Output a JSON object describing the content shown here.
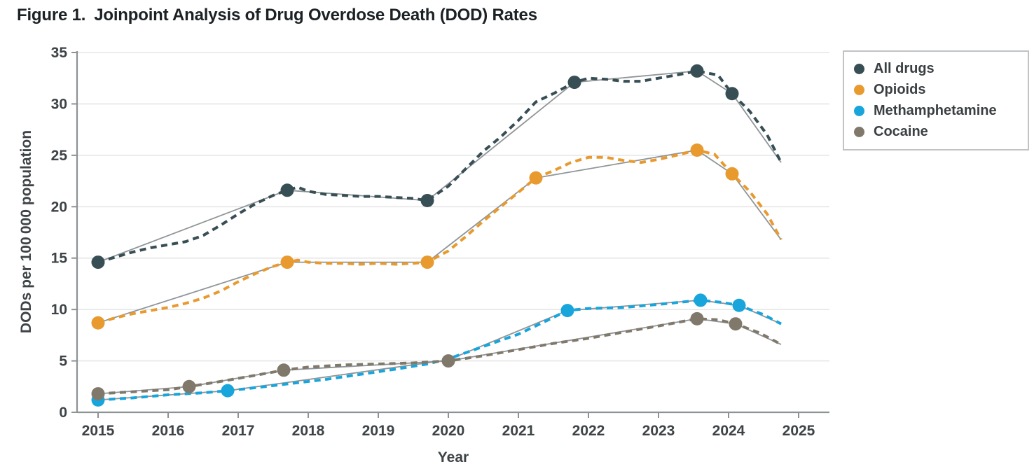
{
  "figure": {
    "label": "Figure 1.",
    "title": "Joinpoint Analysis of Drug Overdose Death (DOD) Rates"
  },
  "legend": {
    "items": [
      "All drugs",
      "Opioids",
      "Methamphetamine",
      "Cocaine"
    ]
  },
  "colors": {
    "all_drugs": "#374e55",
    "opioids": "#e89a2e",
    "methamphetamine": "#18a5dc",
    "cocaine": "#80796b",
    "fit_line": "#8f9598",
    "axis": "#8d9295",
    "gridline": "#e5e6e6",
    "tick_label": "#3d4346",
    "title_text": "#1b2124"
  },
  "chart_data": {
    "type": "line",
    "title": "Figure 1. Joinpoint Analysis of Drug Overdose Death (DOD) Rates",
    "xlabel": "Year",
    "ylabel": "DODs per 100 000 population",
    "xlim": [
      2014.7,
      2025.45
    ],
    "ylim": [
      0,
      35
    ],
    "x_ticks": [
      2015,
      2016,
      2017,
      2018,
      2019,
      2020,
      2021,
      2022,
      2023,
      2024,
      2025
    ],
    "y_ticks": [
      0,
      5,
      10,
      15,
      20,
      25,
      30,
      35
    ],
    "grid": "horizontal",
    "legend_position": "outside-top-right",
    "style_note": "dashed colored lines = observed rates; thin solid gray lines = joinpoint model fit; filled circles = joinpoints",
    "series": [
      {
        "name": "All drugs",
        "color": "#374e55",
        "joinpoints": [
          [
            2015.0,
            14.6
          ],
          [
            2017.7,
            21.6
          ],
          [
            2019.7,
            20.6
          ],
          [
            2021.8,
            32.1
          ],
          [
            2023.55,
            33.2
          ],
          [
            2024.05,
            31.0
          ]
        ],
        "fit_line": [
          [
            2015.0,
            14.6
          ],
          [
            2017.7,
            21.6
          ],
          [
            2019.7,
            20.6
          ],
          [
            2021.8,
            32.1
          ],
          [
            2023.55,
            33.2
          ],
          [
            2024.05,
            31.0
          ],
          [
            2024.75,
            24.3
          ]
        ],
        "observed": [
          [
            2015.0,
            14.6
          ],
          [
            2015.25,
            15.1
          ],
          [
            2015.5,
            15.6
          ],
          [
            2015.75,
            16.0
          ],
          [
            2016.0,
            16.3
          ],
          [
            2016.25,
            16.6
          ],
          [
            2016.5,
            17.2
          ],
          [
            2016.75,
            18.2
          ],
          [
            2017.0,
            19.3
          ],
          [
            2017.25,
            20.3
          ],
          [
            2017.5,
            21.1
          ],
          [
            2017.7,
            21.6
          ],
          [
            2017.85,
            21.9
          ],
          [
            2018.0,
            21.5
          ],
          [
            2018.25,
            21.2
          ],
          [
            2018.5,
            21.1
          ],
          [
            2018.75,
            21.0
          ],
          [
            2019.0,
            21.0
          ],
          [
            2019.25,
            20.9
          ],
          [
            2019.5,
            20.8
          ],
          [
            2019.7,
            20.6
          ],
          [
            2020.0,
            22.0
          ],
          [
            2020.25,
            23.7
          ],
          [
            2020.5,
            25.4
          ],
          [
            2020.75,
            26.8
          ],
          [
            2021.0,
            28.4
          ],
          [
            2021.25,
            30.2
          ],
          [
            2021.5,
            31.0
          ],
          [
            2021.8,
            32.1
          ],
          [
            2022.0,
            32.5
          ],
          [
            2022.25,
            32.4
          ],
          [
            2022.5,
            32.2
          ],
          [
            2022.75,
            32.2
          ],
          [
            2023.0,
            32.5
          ],
          [
            2023.25,
            32.8
          ],
          [
            2023.55,
            33.2
          ],
          [
            2023.85,
            32.8
          ],
          [
            2024.05,
            31.0
          ],
          [
            2024.3,
            29.3
          ],
          [
            2024.55,
            27.0
          ],
          [
            2024.75,
            24.3
          ]
        ]
      },
      {
        "name": "Opioids",
        "color": "#e89a2e",
        "joinpoints": [
          [
            2015.0,
            8.7
          ],
          [
            2017.7,
            14.6
          ],
          [
            2019.7,
            14.6
          ],
          [
            2021.25,
            22.8
          ],
          [
            2023.55,
            25.5
          ],
          [
            2024.05,
            23.2
          ]
        ],
        "fit_line": [
          [
            2015.0,
            8.7
          ],
          [
            2017.7,
            14.6
          ],
          [
            2019.7,
            14.6
          ],
          [
            2021.25,
            22.8
          ],
          [
            2023.55,
            25.5
          ],
          [
            2024.05,
            23.2
          ],
          [
            2024.75,
            16.8
          ]
        ],
        "observed": [
          [
            2015.0,
            8.7
          ],
          [
            2015.25,
            9.2
          ],
          [
            2015.5,
            9.6
          ],
          [
            2015.75,
            9.9
          ],
          [
            2016.0,
            10.2
          ],
          [
            2016.25,
            10.6
          ],
          [
            2016.5,
            11.1
          ],
          [
            2016.75,
            11.8
          ],
          [
            2017.0,
            12.7
          ],
          [
            2017.25,
            13.5
          ],
          [
            2017.5,
            14.2
          ],
          [
            2017.7,
            14.6
          ],
          [
            2017.85,
            14.8
          ],
          [
            2018.0,
            14.6
          ],
          [
            2018.25,
            14.5
          ],
          [
            2018.5,
            14.5
          ],
          [
            2018.75,
            14.4
          ],
          [
            2019.0,
            14.5
          ],
          [
            2019.25,
            14.4
          ],
          [
            2019.5,
            14.5
          ],
          [
            2019.7,
            14.6
          ],
          [
            2020.0,
            15.7
          ],
          [
            2020.25,
            17.1
          ],
          [
            2020.5,
            18.6
          ],
          [
            2020.75,
            20.0
          ],
          [
            2021.0,
            21.4
          ],
          [
            2021.25,
            22.8
          ],
          [
            2021.5,
            23.5
          ],
          [
            2021.75,
            24.3
          ],
          [
            2022.0,
            24.8
          ],
          [
            2022.25,
            24.8
          ],
          [
            2022.5,
            24.5
          ],
          [
            2022.75,
            24.3
          ],
          [
            2023.0,
            24.6
          ],
          [
            2023.25,
            25.0
          ],
          [
            2023.55,
            25.5
          ],
          [
            2023.8,
            25.1
          ],
          [
            2024.05,
            23.2
          ],
          [
            2024.3,
            21.5
          ],
          [
            2024.55,
            19.3
          ],
          [
            2024.75,
            16.8
          ]
        ]
      },
      {
        "name": "Methamphetamine",
        "color": "#18a5dc",
        "joinpoints": [
          [
            2015.0,
            1.2
          ],
          [
            2016.85,
            2.1
          ],
          [
            2021.7,
            9.9
          ],
          [
            2023.6,
            10.9
          ],
          [
            2024.15,
            10.4
          ]
        ],
        "fit_line": [
          [
            2015.0,
            1.2
          ],
          [
            2016.85,
            2.1
          ],
          [
            2020.0,
            5.1
          ],
          [
            2021.7,
            9.9
          ],
          [
            2023.6,
            10.9
          ],
          [
            2024.15,
            10.4
          ],
          [
            2024.75,
            8.6
          ]
        ],
        "observed": [
          [
            2015.0,
            1.2
          ],
          [
            2015.5,
            1.4
          ],
          [
            2016.0,
            1.7
          ],
          [
            2016.5,
            1.9
          ],
          [
            2016.85,
            2.1
          ],
          [
            2017.25,
            2.4
          ],
          [
            2017.75,
            2.8
          ],
          [
            2018.25,
            3.2
          ],
          [
            2018.75,
            3.7
          ],
          [
            2019.25,
            4.2
          ],
          [
            2019.7,
            4.7
          ],
          [
            2020.0,
            5.2
          ],
          [
            2020.5,
            6.4
          ],
          [
            2021.0,
            7.6
          ],
          [
            2021.4,
            8.9
          ],
          [
            2021.7,
            9.9
          ],
          [
            2022.0,
            10.1
          ],
          [
            2022.5,
            10.2
          ],
          [
            2023.0,
            10.5
          ],
          [
            2023.6,
            10.9
          ],
          [
            2023.9,
            10.7
          ],
          [
            2024.15,
            10.4
          ],
          [
            2024.5,
            9.5
          ],
          [
            2024.75,
            8.6
          ]
        ]
      },
      {
        "name": "Cocaine",
        "color": "#80796b",
        "joinpoints": [
          [
            2015.0,
            1.8
          ],
          [
            2016.3,
            2.5
          ],
          [
            2017.65,
            4.1
          ],
          [
            2020.0,
            5.0
          ],
          [
            2023.55,
            9.1
          ],
          [
            2024.1,
            8.6
          ]
        ],
        "fit_line": [
          [
            2015.0,
            1.8
          ],
          [
            2016.3,
            2.5
          ],
          [
            2017.65,
            4.1
          ],
          [
            2020.0,
            5.0
          ],
          [
            2023.55,
            9.1
          ],
          [
            2024.1,
            8.6
          ],
          [
            2024.75,
            6.6
          ]
        ],
        "observed": [
          [
            2015.0,
            1.8
          ],
          [
            2015.5,
            2.0
          ],
          [
            2016.0,
            2.2
          ],
          [
            2016.3,
            2.5
          ],
          [
            2016.75,
            3.0
          ],
          [
            2017.25,
            3.6
          ],
          [
            2017.65,
            4.1
          ],
          [
            2018.0,
            4.4
          ],
          [
            2018.5,
            4.6
          ],
          [
            2019.0,
            4.7
          ],
          [
            2019.5,
            4.8
          ],
          [
            2020.0,
            5.0
          ],
          [
            2020.5,
            5.5
          ],
          [
            2021.0,
            6.1
          ],
          [
            2021.5,
            6.7
          ],
          [
            2022.0,
            7.2
          ],
          [
            2022.5,
            7.8
          ],
          [
            2023.0,
            8.4
          ],
          [
            2023.55,
            9.1
          ],
          [
            2023.85,
            9.0
          ],
          [
            2024.1,
            8.6
          ],
          [
            2024.45,
            7.7
          ],
          [
            2024.75,
            6.6
          ]
        ]
      }
    ]
  }
}
